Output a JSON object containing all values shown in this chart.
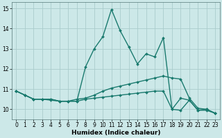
{
  "xlabel": "Humidex (Indice chaleur)",
  "bg_color": "#cce8e8",
  "grid_color": "#aacccc",
  "line_color": "#1a7a6e",
  "xlim": [
    -0.5,
    23.5
  ],
  "ylim": [
    9.5,
    15.3
  ],
  "yticks": [
    10,
    11,
    12,
    13,
    14,
    15
  ],
  "xticks": [
    0,
    1,
    2,
    3,
    4,
    5,
    6,
    7,
    8,
    9,
    10,
    11,
    12,
    13,
    14,
    15,
    16,
    17,
    18,
    19,
    20,
    21,
    22,
    23
  ],
  "series": [
    {
      "x": [
        0,
        1,
        2,
        3,
        4,
        5,
        6,
        7,
        8,
        9,
        10,
        11,
        12,
        13,
        14,
        15,
        16,
        17,
        18,
        19,
        20,
        21,
        22,
        23
      ],
      "y": [
        10.9,
        10.7,
        10.5,
        10.5,
        10.5,
        10.4,
        10.4,
        10.4,
        12.1,
        13.0,
        13.6,
        14.95,
        13.9,
        13.1,
        12.25,
        12.75,
        12.6,
        13.55,
        10.0,
        10.55,
        10.45,
        9.95,
        10.0,
        9.8
      ],
      "linewidth": 1.0
    },
    {
      "x": [
        0,
        1,
        2,
        3,
        4,
        5,
        6,
        7,
        8,
        9,
        10,
        11,
        12,
        13,
        14,
        15,
        16,
        17,
        18,
        19,
        20,
        21,
        22,
        23
      ],
      "y": [
        10.9,
        10.7,
        10.5,
        10.5,
        10.5,
        10.4,
        10.4,
        10.5,
        10.55,
        10.7,
        10.9,
        11.05,
        11.15,
        11.25,
        11.35,
        11.45,
        11.55,
        11.65,
        11.55,
        11.5,
        10.55,
        10.05,
        10.0,
        9.8
      ],
      "linewidth": 1.0
    },
    {
      "x": [
        0,
        1,
        2,
        3,
        4,
        5,
        6,
        7,
        8,
        9,
        10,
        11,
        12,
        13,
        14,
        15,
        16,
        17,
        18,
        19,
        20,
        21,
        22,
        23
      ],
      "y": [
        10.9,
        10.7,
        10.5,
        10.5,
        10.45,
        10.4,
        10.4,
        10.4,
        10.5,
        10.55,
        10.6,
        10.65,
        10.7,
        10.75,
        10.8,
        10.85,
        10.9,
        10.9,
        10.0,
        9.95,
        10.45,
        9.95,
        9.95,
        9.8
      ],
      "linewidth": 1.0
    }
  ],
  "markersize": 2.0,
  "xlabel_fontsize": 6.5,
  "tick_fontsize": 5.5
}
